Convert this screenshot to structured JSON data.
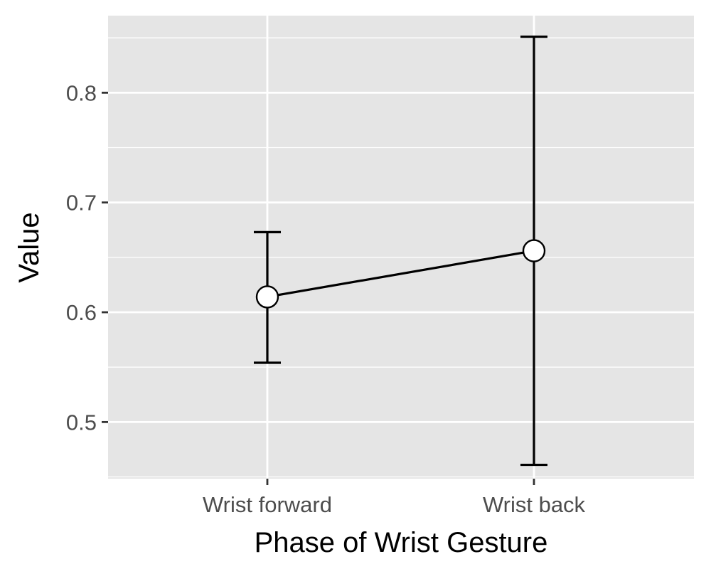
{
  "chart_data": {
    "type": "line",
    "categories": [
      "Wrist forward",
      "Wrist back"
    ],
    "series": [
      {
        "values": [
          0.614,
          0.656
        ],
        "error_low": [
          0.554,
          0.461
        ],
        "error_high": [
          0.673,
          0.851
        ]
      }
    ],
    "title": "",
    "xlabel": "Phase of Wrist Gesture",
    "ylabel": "Value",
    "ylim": [
      0.4484,
      0.8702
    ],
    "yticks": [
      0.5,
      0.6,
      0.7,
      0.8
    ],
    "ytick_labels": [
      "0.5",
      "0.6",
      "0.7",
      "0.8"
    ],
    "grid": true,
    "legend": "none",
    "colors": {
      "panel": "#e5e5e5",
      "grid": "#ffffff",
      "line": "#000000",
      "marker_fill": "#ffffff",
      "tick_text": "#4d4d4d"
    }
  }
}
